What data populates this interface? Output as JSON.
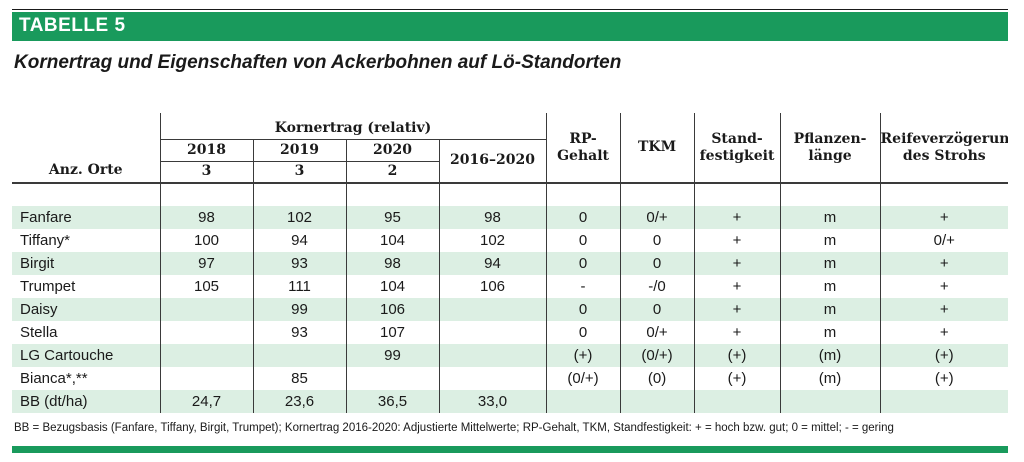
{
  "banner": {
    "title": "TABELLE 5"
  },
  "subtitle": "Kornertrag und Eigenschaften von Ackerbohnen auf Lö-Standorten",
  "table": {
    "header": {
      "anz_orte": "Anz. Orte",
      "kornertrag": "Kornertrag (relativ)",
      "years": [
        "2018",
        "2019",
        "2020"
      ],
      "orte": [
        "3",
        "3",
        "2"
      ],
      "period": "2016–2020",
      "rp_line1": "RP-",
      "rp_line2": "Gehalt",
      "tkm": "TKM",
      "stand_line1": "Stand-",
      "stand_line2": "festigkeit",
      "pfl_line1": "Pflanzen-",
      "pfl_line2": "länge",
      "reife_line1": "Reifeverzögerung",
      "reife_line2": "des Strohs"
    },
    "rows": [
      {
        "name": "Fanfare",
        "c2018": "98",
        "c2019": "102",
        "c2020": "95",
        "cavg": "98",
        "rp": "0",
        "tkm": "0/+",
        "stand": "+",
        "pfl": "m",
        "reife": "+"
      },
      {
        "name": "Tiffany*",
        "c2018": "100",
        "c2019": "94",
        "c2020": "104",
        "cavg": "102",
        "rp": "0",
        "tkm": "0",
        "stand": "+",
        "pfl": "m",
        "reife": "0/+"
      },
      {
        "name": "Birgit",
        "c2018": "97",
        "c2019": "93",
        "c2020": "98",
        "cavg": "94",
        "rp": "0",
        "tkm": "0",
        "stand": "+",
        "pfl": "m",
        "reife": "+"
      },
      {
        "name": "Trumpet",
        "c2018": "105",
        "c2019": "111",
        "c2020": "104",
        "cavg": "106",
        "rp": "-",
        "tkm": "-/0",
        "stand": "+",
        "pfl": "m",
        "reife": "+"
      },
      {
        "name": "Daisy",
        "c2018": "",
        "c2019": "99",
        "c2020": "106",
        "cavg": "",
        "rp": "0",
        "tkm": "0",
        "stand": "+",
        "pfl": "m",
        "reife": "+"
      },
      {
        "name": "Stella",
        "c2018": "",
        "c2019": "93",
        "c2020": "107",
        "cavg": "",
        "rp": "0",
        "tkm": "0/+",
        "stand": "+",
        "pfl": "m",
        "reife": "+"
      },
      {
        "name": "LG Cartouche",
        "c2018": "",
        "c2019": "",
        "c2020": "99",
        "cavg": "",
        "rp": "(+)",
        "tkm": "(0/+)",
        "stand": "(+)",
        "pfl": "(m)",
        "reife": "(+)"
      },
      {
        "name": "Bianca*,**",
        "c2018": "",
        "c2019": "85",
        "c2020": "",
        "cavg": "",
        "rp": "(0/+)",
        "tkm": "(0)",
        "stand": "(+)",
        "pfl": "(m)",
        "reife": "(+)"
      },
      {
        "name": "BB (dt/ha)",
        "c2018": "24,7",
        "c2019": "23,6",
        "c2020": "36,5",
        "cavg": "33,0",
        "rp": "",
        "tkm": "",
        "stand": "",
        "pfl": "",
        "reife": ""
      }
    ]
  },
  "footnote": "BB = Bezugsbasis (Fanfare, Tiffany, Birgit, Trumpet); Kornertrag 2016-2020: Adjustierte Mittelwerte; RP-Gehalt, TKM, Standfestigkeit: + = hoch bzw. gut; 0 = mittel;  - = gering",
  "colors": {
    "accent": "#199a5c",
    "row_shade": "#dcefe3"
  }
}
